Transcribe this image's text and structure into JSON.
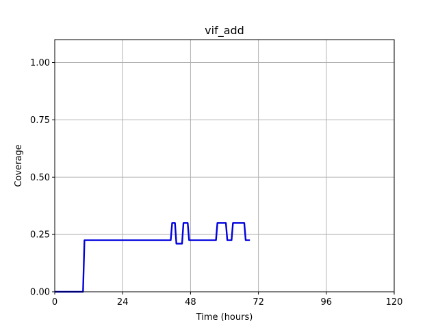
{
  "chart_data": {
    "type": "line",
    "title": "vif_add",
    "xlabel": "Time (hours)",
    "ylabel": "Coverage",
    "xlim": [
      0,
      120
    ],
    "ylim": [
      0,
      1.1
    ],
    "xticks": [
      0,
      24,
      48,
      72,
      96,
      120
    ],
    "xtick_labels": [
      "0",
      "24",
      "48",
      "72",
      "96",
      "120"
    ],
    "yticks": [
      0,
      0.25,
      0.5,
      0.75,
      1.0
    ],
    "ytick_labels": [
      "0.00",
      "0.25",
      "0.50",
      "0.75",
      "1.00"
    ],
    "grid": true,
    "series": [
      {
        "color": "#0000dd",
        "x": [
          0,
          10,
          10.5,
          41,
          41.5,
          42.5,
          43,
          45,
          45.5,
          47,
          47.5,
          57,
          57.5,
          60.5,
          61,
          62.5,
          63,
          67,
          67.5,
          69
        ],
        "y": [
          0,
          0,
          0.225,
          0.225,
          0.3,
          0.3,
          0.21,
          0.21,
          0.3,
          0.3,
          0.225,
          0.225,
          0.3,
          0.3,
          0.225,
          0.225,
          0.3,
          0.3,
          0.225,
          0.225
        ]
      }
    ]
  }
}
